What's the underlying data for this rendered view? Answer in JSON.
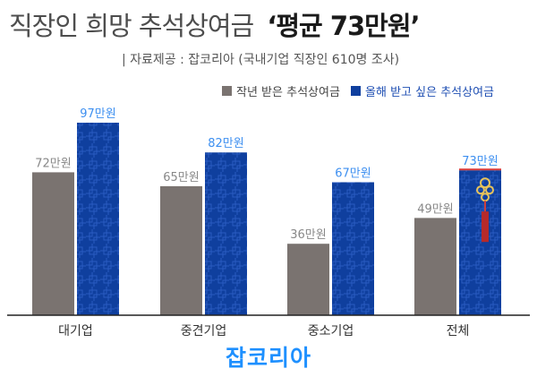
{
  "header": {
    "title": "직장인 희망 추석상여금",
    "title_accent": "‘평균 73만원’",
    "source": "| 자료제공 : 잡코리아 (국내기업 직장인 610명 조사)"
  },
  "brand": "잡코리아",
  "colors": {
    "gray": "#7a7370",
    "blue": "#0f3f9e",
    "blue_label": "#3d8ff0",
    "gray_label": "#888888"
  },
  "chart_data": {
    "type": "bar",
    "categories": [
      "대기업",
      "중견기업",
      "중소기업",
      "전체"
    ],
    "series": [
      {
        "name": "작년 받은 추석상여금",
        "values": [
          72,
          65,
          36,
          49
        ],
        "labels": [
          "72만원",
          "65만원",
          "36만원",
          "49만원"
        ]
      },
      {
        "name": "올해 받고 싶은 추석상여금",
        "values": [
          97,
          82,
          67,
          73
        ],
        "labels": [
          "97만원",
          "82만원",
          "67만원",
          "73만원"
        ]
      }
    ],
    "title": "직장인 희망 추석상여금 ‘평균 73만원’",
    "unit": "만원",
    "ylim": [
      0,
      97
    ],
    "legend_position": "top-right",
    "grid": false
  }
}
